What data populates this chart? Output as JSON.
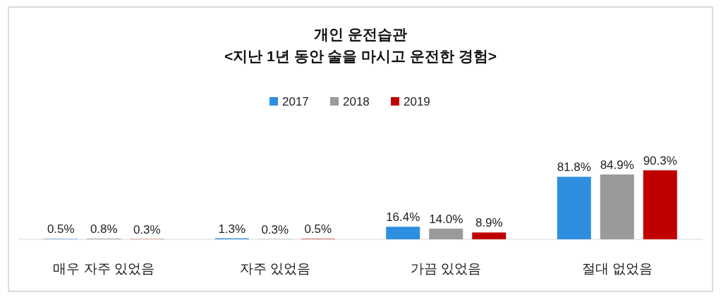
{
  "chart_data": {
    "type": "bar",
    "title": "개인 운전습관",
    "subtitle": "<지난 1년 동안 술을 마시고 운전한 경험>",
    "categories": [
      "매우 자주 있었음",
      "자주 있었음",
      "가끔 있었음",
      "절대 없었음"
    ],
    "legend": "top",
    "series": [
      {
        "name": "2017",
        "color": "#2e8ee0",
        "values": [
          0.5,
          1.3,
          16.4,
          81.8
        ],
        "value_labels": [
          "0.5%",
          "1.3%",
          "16.4%",
          "81.8%"
        ]
      },
      {
        "name": "2018",
        "color": "#9a9a9a",
        "values": [
          0.8,
          0.3,
          14.0,
          84.9
        ],
        "value_labels": [
          "0.8%",
          "0.3%",
          "14.0%",
          "84.9%"
        ]
      },
      {
        "name": "2019",
        "color": "#c00000",
        "values": [
          0.3,
          0.5,
          8.9,
          90.3
        ],
        "value_labels": [
          "0.3%",
          "0.5%",
          "8.9%",
          "90.3%"
        ]
      }
    ]
  }
}
